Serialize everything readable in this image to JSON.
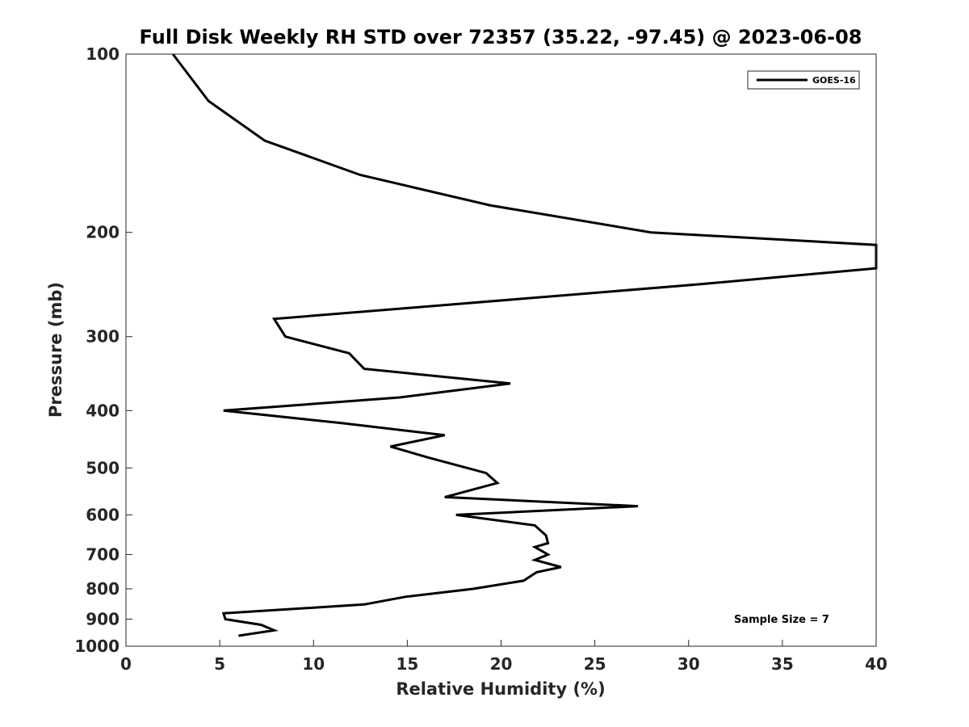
{
  "chart_data": {
    "type": "line",
    "title": "Full Disk Weekly RH STD over 72357 (35.22, -97.45) @ 2023-06-08",
    "xlabel": "Relative Humidity (%)",
    "ylabel": "Pressure (mb)",
    "xlim": [
      0,
      40
    ],
    "ylim": [
      100,
      1000
    ],
    "yscale": "log",
    "y_reversed": true,
    "xticks": [
      0,
      5,
      10,
      15,
      20,
      25,
      30,
      35,
      40
    ],
    "yticks": [
      100,
      200,
      300,
      400,
      500,
      600,
      700,
      800,
      900,
      1000
    ],
    "grid": false,
    "legend_position": "top-right",
    "series": [
      {
        "name": "GOES-16",
        "color": "#000000",
        "x": [
          2.5,
          4.4,
          7.4,
          12.5,
          19.4,
          28.0,
          40.0,
          40.0,
          30.4,
          7.9,
          8.5,
          11.9,
          12.7,
          20.5,
          14.6,
          5.2,
          11.5,
          17.0,
          14.1,
          16.1,
          19.2,
          19.8,
          17.0,
          27.3,
          17.6,
          21.8,
          22.4,
          22.5,
          21.8,
          22.5,
          21.8,
          23.2,
          21.9,
          21.2,
          18.5,
          14.9,
          12.7,
          5.2,
          5.3,
          7.2,
          7.9,
          6.0
        ],
        "y": [
          100,
          120,
          140,
          160,
          180,
          200,
          210,
          230,
          245,
          280,
          300,
          320,
          340,
          360,
          380,
          400,
          420,
          440,
          460,
          480,
          510,
          530,
          560,
          580,
          600,
          625,
          650,
          670,
          680,
          700,
          715,
          735,
          750,
          775,
          800,
          825,
          850,
          880,
          900,
          920,
          940,
          960
        ]
      }
    ],
    "annotations": [
      "Sample Size = 7"
    ]
  }
}
